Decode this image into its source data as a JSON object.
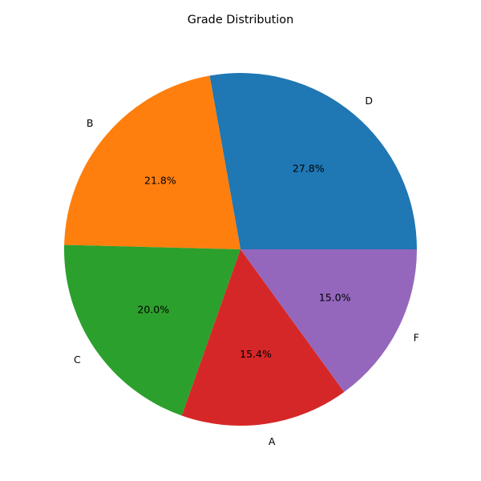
{
  "chart_data": {
    "type": "pie",
    "title": "Grade Distribution",
    "slices": [
      {
        "label": "D",
        "value": 27.8,
        "pct_label": "27.8%",
        "color": "#1f77b4"
      },
      {
        "label": "B",
        "value": 21.8,
        "pct_label": "21.8%",
        "color": "#ff7f0e"
      },
      {
        "label": "C",
        "value": 20.0,
        "pct_label": "20.0%",
        "color": "#2ca02c"
      },
      {
        "label": "A",
        "value": 15.4,
        "pct_label": "15.4%",
        "color": "#d62728"
      },
      {
        "label": "F",
        "value": 15.0,
        "pct_label": "15.0%",
        "color": "#9467bd"
      }
    ],
    "start_angle_deg": 0,
    "direction": "counterclockwise",
    "legend": "none"
  }
}
